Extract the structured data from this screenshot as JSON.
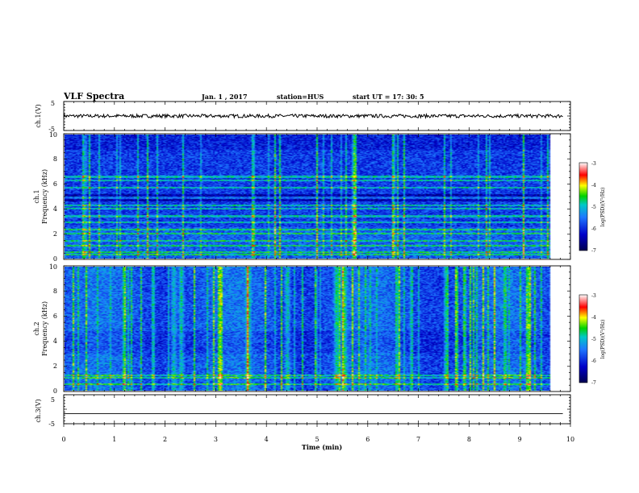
{
  "header": {
    "title": "VLF Spectra",
    "date": "Jan. 1 , 2017",
    "station": "station=HUS",
    "start": "start UT =  17: 30: 5"
  },
  "colors": {
    "background": "#ffffff",
    "axes": "#000000",
    "colormap": [
      "#000050",
      "#0000c8",
      "#1e78ff",
      "#00c8c8",
      "#00d200",
      "#ffff00",
      "#ff0000",
      "#ffffff"
    ]
  },
  "chart_data": [
    {
      "type": "line",
      "id": "ch1-waveform",
      "ylabel": "ch.1(V)",
      "ylim": [
        -5,
        5
      ],
      "yticks": [
        "5",
        "-5"
      ],
      "xlim": [
        0,
        10
      ],
      "series": [
        {
          "level": 0,
          "noise": "small"
        }
      ]
    },
    {
      "type": "heatmap",
      "id": "ch1-spectrogram",
      "ylabel": "ch.1\nFrequency (kHz)",
      "ylim": [
        0,
        10
      ],
      "yticks": [
        "0",
        "2",
        "4",
        "6",
        "8",
        "10"
      ],
      "xlim": [
        0,
        10
      ],
      "colorbar": {
        "label": "log(PSD)(V²/Hz)",
        "ticks": [
          "-3",
          "-4",
          "-5",
          "-6",
          "-7"
        ],
        "range": [
          -7,
          -3
        ]
      },
      "features": {
        "horizontal_lines_khz": [
          0.3,
          0.5,
          1.0,
          1.4,
          2.0,
          2.3,
          2.9,
          3.4,
          4.0,
          4.3,
          4.9,
          5.7,
          6.3,
          6.6
        ],
        "dark_band_khz": [
          4.6,
          5.2
        ]
      }
    },
    {
      "type": "heatmap",
      "id": "ch2-spectrogram",
      "ylabel": "ch.2\nFrequency (kHz)",
      "ylim": [
        0,
        10
      ],
      "yticks": [
        "0",
        "2",
        "4",
        "6",
        "8",
        "10"
      ],
      "xlim": [
        0,
        10
      ],
      "colorbar": {
        "label": "log(PSD)(V²/Hz)",
        "ticks": [
          "-3",
          "-4",
          "-5",
          "-6",
          "-7"
        ],
        "range": [
          -7,
          -3
        ]
      },
      "features": {
        "horizontal_lines_khz": [
          0.5,
          1.0,
          1.2
        ],
        "burst_times_min": [
          2.2,
          2.35,
          3.7,
          4.5,
          5.5,
          5.65
        ]
      }
    },
    {
      "type": "line",
      "id": "ch3-waveform",
      "ylabel": "ch.3(V)",
      "ylim": [
        -5,
        5
      ],
      "yticks": [
        "5",
        "-5"
      ],
      "xlim": [
        0,
        10
      ],
      "series": [
        {
          "level": -1.5,
          "noise": "none"
        }
      ]
    }
  ],
  "x_axis": {
    "label": "Time (min)",
    "ticks": [
      "0",
      "1",
      "2",
      "3",
      "4",
      "5",
      "6",
      "7",
      "8",
      "9",
      "10"
    ],
    "data_end_min": 9.85
  }
}
